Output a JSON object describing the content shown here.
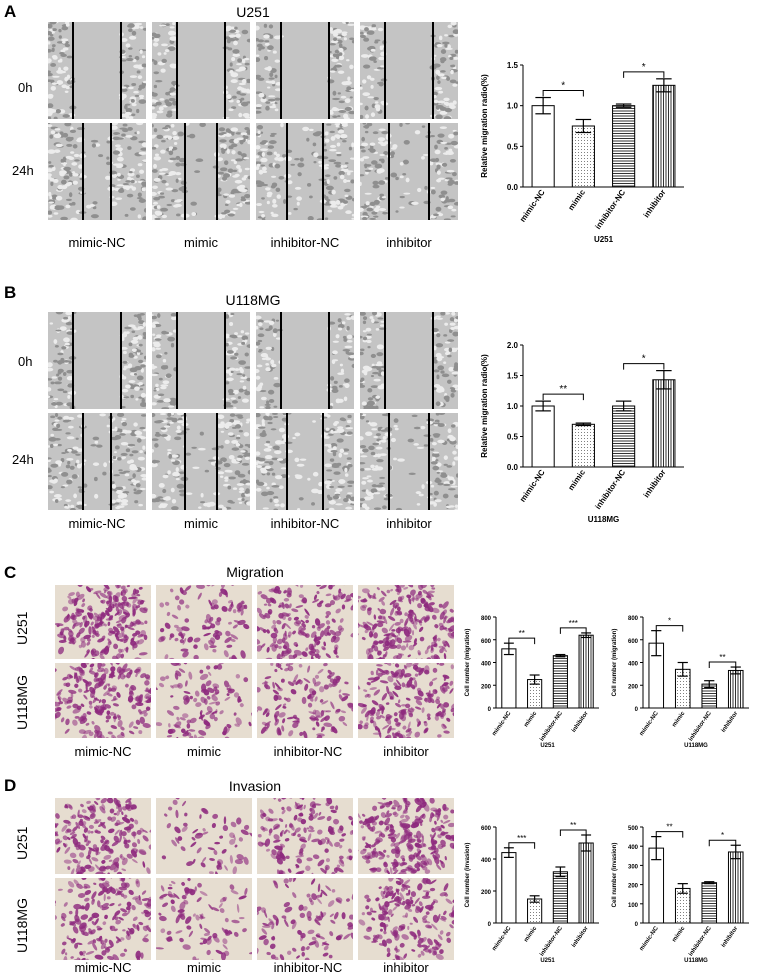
{
  "colors": {
    "transwell_bg": "#e6ddd0",
    "stain": "#8e2a7e",
    "wound_gap": "#b9b9b9",
    "cells": "#dcdcdc"
  },
  "conditions": [
    "mimic-NC",
    "mimic",
    "inhibitor-NC",
    "inhibitor"
  ],
  "panelA": {
    "letter": "A",
    "title": "U251",
    "rows": [
      "0h",
      "24h"
    ]
  },
  "panelB": {
    "letter": "B",
    "title": "U118MG",
    "rows": [
      "0h",
      "24h"
    ]
  },
  "panelC": {
    "letter": "C",
    "title": "Migration",
    "rows": [
      "U251",
      "U118MG"
    ]
  },
  "panelD": {
    "letter": "D",
    "title": "Invasion",
    "rows": [
      "U251",
      "U118MG"
    ]
  },
  "chart_data": [
    {
      "id": "A",
      "type": "bar",
      "title": "",
      "xlabel": "U251",
      "ylabel": "Relative migration radio(%)",
      "categories": [
        "mimic-NC",
        "mimic",
        "inhibitor-NC",
        "inhibitor"
      ],
      "values": [
        1.0,
        0.75,
        1.0,
        1.25
      ],
      "errors": [
        0.1,
        0.08,
        0.02,
        0.08
      ],
      "ylim": [
        0,
        1.5
      ],
      "yticks": [
        "0.0",
        "0.5",
        "1.0",
        "1.5"
      ],
      "significance": [
        {
          "pair": [
            0,
            1
          ],
          "label": "*"
        },
        {
          "pair": [
            2,
            3
          ],
          "label": "*"
        }
      ]
    },
    {
      "id": "B",
      "type": "bar",
      "title": "",
      "xlabel": "U118MG",
      "ylabel": "Relative migration radio(%)",
      "categories": [
        "mimic-NC",
        "mimic",
        "inhibitor-NC",
        "inhibitor"
      ],
      "values": [
        1.0,
        0.7,
        1.0,
        1.43
      ],
      "errors": [
        0.08,
        0.02,
        0.08,
        0.15
      ],
      "ylim": [
        0,
        2.0
      ],
      "yticks": [
        "0.0",
        "0.5",
        "1.0",
        "1.5",
        "2.0"
      ],
      "significance": [
        {
          "pair": [
            0,
            1
          ],
          "label": "**"
        },
        {
          "pair": [
            2,
            3
          ],
          "label": "*"
        }
      ]
    },
    {
      "id": "C1",
      "type": "bar",
      "title": "",
      "xlabel": "U251",
      "ylabel": "Cell number (migration)",
      "categories": [
        "mimic-NC",
        "mimic",
        "inhibitor-NC",
        "inhibitor"
      ],
      "values": [
        520,
        250,
        460,
        640
      ],
      "errors": [
        50,
        40,
        10,
        20
      ],
      "ylim": [
        0,
        800
      ],
      "yticks": [
        "0",
        "200",
        "400",
        "600",
        "800"
      ],
      "significance": [
        {
          "pair": [
            0,
            1
          ],
          "label": "**"
        },
        {
          "pair": [
            2,
            3
          ],
          "label": "***"
        }
      ]
    },
    {
      "id": "C2",
      "type": "bar",
      "title": "",
      "xlabel": "U118MG",
      "ylabel": "Cell number (migration)",
      "categories": [
        "mimic-NC",
        "mimic",
        "inhibitor-NC",
        "inhibitor"
      ],
      "values": [
        570,
        340,
        210,
        330
      ],
      "errors": [
        110,
        60,
        30,
        30
      ],
      "ylim": [
        0,
        800
      ],
      "yticks": [
        "0",
        "200",
        "400",
        "600",
        "800"
      ],
      "significance": [
        {
          "pair": [
            0,
            1
          ],
          "label": "*"
        },
        {
          "pair": [
            2,
            3
          ],
          "label": "**"
        }
      ]
    },
    {
      "id": "D1",
      "type": "bar",
      "title": "",
      "xlabel": "U251",
      "ylabel": "Cell number (invasion)",
      "categories": [
        "mimic-NC",
        "mimic",
        "inhibitor-NC",
        "inhibitor"
      ],
      "values": [
        440,
        150,
        320,
        500
      ],
      "errors": [
        30,
        20,
        30,
        50
      ],
      "ylim": [
        0,
        600
      ],
      "yticks": [
        "0",
        "200",
        "400",
        "600"
      ],
      "significance": [
        {
          "pair": [
            0,
            1
          ],
          "label": "***"
        },
        {
          "pair": [
            2,
            3
          ],
          "label": "**"
        }
      ]
    },
    {
      "id": "D2",
      "type": "bar",
      "title": "",
      "xlabel": "U118MG",
      "ylabel": "Cell number (invasion)",
      "categories": [
        "mimic-NC",
        "mimic",
        "inhibitor-NC",
        "inhibitor"
      ],
      "values": [
        390,
        180,
        210,
        370
      ],
      "errors": [
        60,
        25,
        5,
        35
      ],
      "ylim": [
        0,
        500
      ],
      "yticks": [
        "0",
        "100",
        "200",
        "300",
        "400",
        "500"
      ],
      "significance": [
        {
          "pair": [
            0,
            1
          ],
          "label": "**"
        },
        {
          "pair": [
            2,
            3
          ],
          "label": "*"
        }
      ]
    }
  ]
}
